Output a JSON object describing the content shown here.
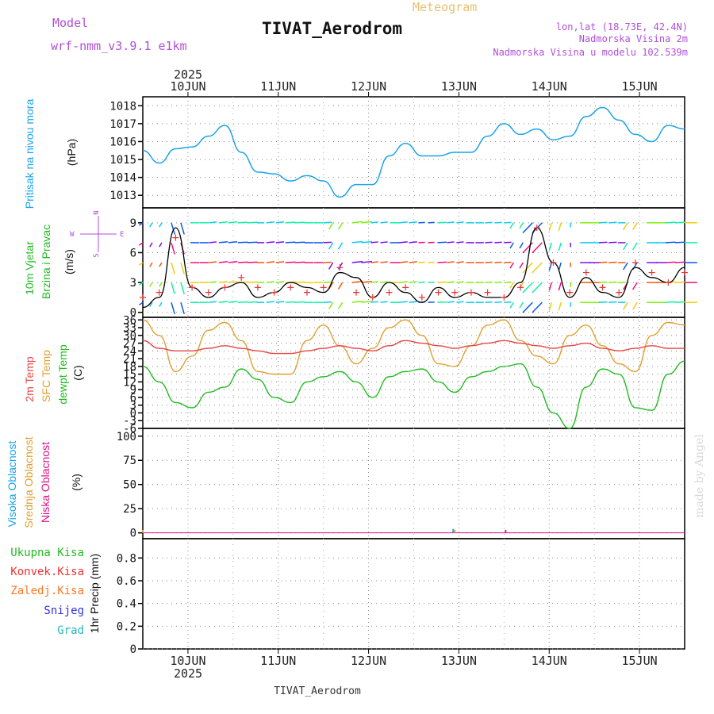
{
  "header": {
    "model_label": "Model",
    "model_name": "wrf-nmm_v3.9.1  e1km",
    "title": "TIVAT_Aerodrom",
    "meteogram": "Meteogram",
    "lonlat": "lon,lat (18.73E, 42.4N)",
    "elevation": "Nadmorska Visina 2m",
    "model_elevation": "Nadmorska Visina u modelu 102.539m",
    "footer_title": "TIVAT_Aerodrom",
    "made_by": "made by Angel",
    "year_top": "2025",
    "year_bottom": "2025"
  },
  "colors": {
    "pressure": "#1aa3e8",
    "wind_speed": "#000000",
    "gust": "#ee3333",
    "t2m": "#e84545",
    "sfc_temp": "#e0a030",
    "dewpoint": "#22bb22",
    "cloud_high": "#1aa3e8",
    "cloud_mid": "#e0a030",
    "cloud_low": "#dd1188",
    "precip_total": "#22bb22",
    "precip_conv": "#ee3333",
    "precip_frozen": "#ff7722",
    "precip_snow": "#3333dd",
    "precip_hail": "#22bbbb"
  },
  "panels": {
    "pressure": {
      "label": "Pritisak na nivou mora",
      "unit": "(hPa)",
      "ticks": [
        "1013",
        "1014",
        "1015",
        "1016",
        "1017",
        "1018"
      ]
    },
    "wind": {
      "label1": "10m Vjetar",
      "label2": "Brzina i Pravac",
      "unit": "(m/s)",
      "ticks": [
        "0",
        "3",
        "6",
        "9"
      ],
      "compass": {
        "n": "N",
        "w": "W",
        "e": "E",
        "s": "S"
      }
    },
    "temp": {
      "label1": "2m Temp",
      "label2": "SFC Temp",
      "label3": "dewpt Temp",
      "unit": "(C)",
      "ticks": [
        "-6",
        "-3",
        "0",
        "3",
        "6",
        "9",
        "12",
        "15",
        "18",
        "21",
        "24",
        "27",
        "30",
        "33",
        "36"
      ]
    },
    "cloud": {
      "label1": "Visoka Oblacnost",
      "label2": "Srednja Oblacnost",
      "label3": "Niska Oblacnost",
      "unit": "(%)",
      "ticks": [
        "0",
        "25",
        "50",
        "75",
        "100"
      ]
    },
    "precip": {
      "labels": [
        "Ukupna Kisa",
        "Konvek.Kisa",
        "Zaledj.Kisa",
        "Snijeg",
        "Grad"
      ],
      "unit": "1hr Precip (mm)",
      "ticks": [
        "0",
        "0.2",
        "0.4",
        "0.6",
        "0.8"
      ]
    }
  },
  "chart_data": {
    "type": "line",
    "x_days": [
      "10JUN",
      "11JUN",
      "12JUN",
      "13JUN",
      "14JUN",
      "15JUN"
    ],
    "x_start": "2025-06-09T12:00",
    "x_end": "2025-06-15T12:00",
    "pressure_hpa": [
      1015.5,
      1014.8,
      1015.6,
      1015.7,
      1016.3,
      1016.9,
      1015.4,
      1014.3,
      1014.2,
      1013.8,
      1014.1,
      1013.8,
      1012.9,
      1013.6,
      1013.6,
      1015.2,
      1015.9,
      1015.2,
      1015.2,
      1015.4,
      1015.4,
      1016.3,
      1017.0,
      1016.4,
      1016.7,
      1016.1,
      1016.3,
      1017.4,
      1017.9,
      1017.2,
      1016.4,
      1016.0,
      1016.9,
      1016.7
    ],
    "wind_speed_ms": [
      0.5,
      1.5,
      8.5,
      2.5,
      1.5,
      2.5,
      3.0,
      1.5,
      2.0,
      3.0,
      2.5,
      2.0,
      4.0,
      3.5,
      1.5,
      3.0,
      2.0,
      1.0,
      2.5,
      1.5,
      2.0,
      1.5,
      1.5,
      3.0,
      8.5,
      5.0,
      1.5,
      3.5,
      2.0,
      1.5,
      4.5,
      3.5,
      3.0,
      4.5
    ],
    "gust_ms": [
      1.5,
      2.0,
      7.5,
      2.5,
      2.0,
      2.5,
      3.5,
      2.5,
      2.0,
      2.5,
      2.0,
      2.5,
      4.5,
      2.0,
      1.5,
      2.0,
      2.5,
      1.5,
      2.0,
      2.0,
      2.0,
      2.0,
      1.5,
      2.5,
      8.5,
      5.0,
      2.0,
      4.0,
      2.5,
      2.0,
      5.0,
      4.0,
      3.0,
      4.0
    ],
    "wind_dir_deg": [
      220,
      200,
      170,
      90,
      80,
      80,
      85,
      90,
      80,
      85,
      90,
      85,
      200,
      80,
      80,
      90,
      80,
      85,
      85,
      80,
      90,
      85,
      85,
      200,
      210,
      190,
      180,
      90,
      85,
      90,
      200,
      90,
      85,
      90
    ],
    "temp_2m_c": [
      28,
      25,
      24,
      24,
      25,
      26,
      25,
      24,
      23,
      23,
      24,
      25,
      26,
      25,
      24,
      26,
      28,
      27,
      26,
      25,
      26,
      27,
      28,
      27,
      26,
      25,
      26,
      27,
      25,
      24,
      25,
      26,
      25,
      25
    ],
    "temp_sfc_c": [
      36,
      30,
      16,
      22,
      32,
      35,
      28,
      16,
      15,
      15,
      28,
      34,
      26,
      19,
      25,
      33,
      36,
      30,
      19,
      18,
      26,
      34,
      36,
      28,
      22,
      19,
      30,
      34,
      26,
      19,
      16,
      30,
      35,
      34
    ],
    "dewpoint_c": [
      18,
      12,
      4,
      2,
      8,
      10,
      17,
      13,
      6,
      4,
      12,
      14,
      16,
      12,
      6,
      14,
      16,
      17,
      12,
      8,
      14,
      16,
      18,
      19,
      10,
      0,
      -6,
      10,
      17,
      15,
      2,
      1,
      15,
      20
    ],
    "cloud_high_pct": [
      0,
      0,
      0,
      0,
      0,
      0,
      0,
      0,
      0,
      0,
      0,
      0,
      0,
      0,
      0,
      0,
      0,
      0,
      0,
      4,
      0,
      0,
      0,
      0,
      0,
      0,
      0,
      0,
      0,
      0,
      0,
      0,
      0,
      0
    ],
    "cloud_mid_pct": [
      3,
      0,
      0,
      0,
      0,
      0,
      0,
      0,
      0,
      0,
      0,
      0,
      0,
      0,
      0,
      0,
      0,
      0,
      0,
      3,
      0,
      0,
      0,
      0,
      0,
      0,
      0,
      0,
      0,
      0,
      0,
      0,
      0,
      0
    ],
    "cloud_low_pct": [
      0,
      0,
      0,
      0,
      0,
      0,
      0,
      0,
      0,
      0,
      0,
      0,
      0,
      0,
      0,
      0,
      0,
      0,
      0,
      0,
      0,
      0,
      3,
      0,
      0,
      0,
      0,
      0,
      0,
      0,
      0,
      0,
      0,
      0
    ],
    "precip_mm": [
      0,
      0,
      0,
      0,
      0,
      0,
      0,
      0,
      0,
      0,
      0,
      0,
      0,
      0,
      0,
      0,
      0,
      0,
      0,
      0,
      0,
      0,
      0,
      0,
      0,
      0,
      0,
      0,
      0,
      0,
      0,
      0,
      0,
      0
    ]
  }
}
